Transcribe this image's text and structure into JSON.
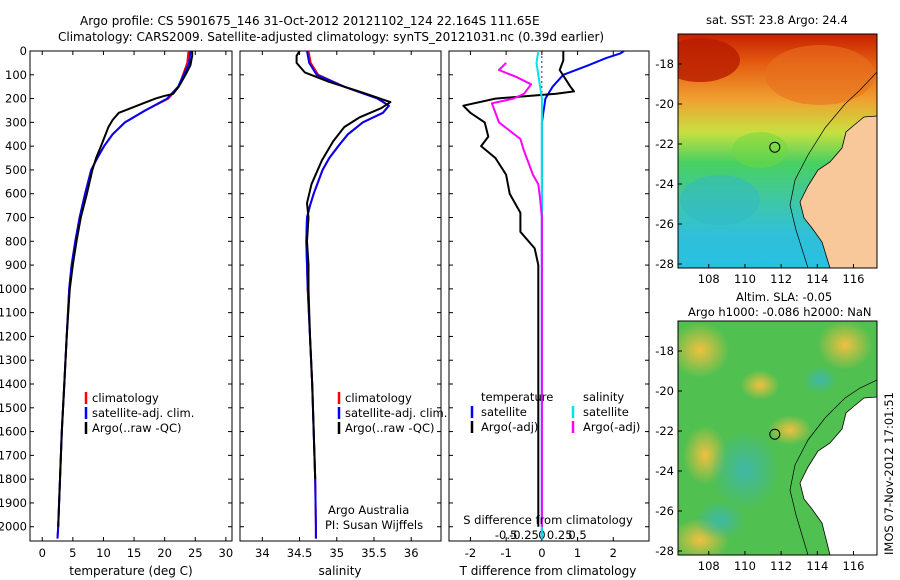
{
  "header": {
    "line1": "Argo profile: CS 5901675_146 31-Oct-2012 20121102_124 22.164S 111.65E",
    "line2": "Climatology: CARS2009. Satellite-adjusted climatology: synTS_20121031.nc (0.39d earlier)"
  },
  "colors": {
    "climatology": "#ff0000",
    "satellite": "#0000ff",
    "argo": "#000000",
    "sal_satellite": "#00e5e5",
    "sal_argo": "#ff00ff"
  },
  "chart_data": [
    {
      "type": "line",
      "id": "temperature",
      "xlabel": "temperature (deg C)",
      "ylabel": "",
      "xlim": [
        -2,
        31
      ],
      "ylim": [
        2060,
        0
      ],
      "xticks": [
        "0",
        "5",
        "10",
        "15",
        "20",
        "25",
        "30"
      ],
      "yticks": [
        "0",
        "100",
        "200",
        "300",
        "400",
        "500",
        "600",
        "700",
        "800",
        "900",
        "1000",
        "1100",
        "1200",
        "1300",
        "1400",
        "1500",
        "1600",
        "1700",
        "1800",
        "1900",
        "2000"
      ],
      "legend": [
        "climatology",
        "satellite-adj. clim.",
        "Argo(..raw -QC)"
      ],
      "series": [
        {
          "name": "climatology",
          "color": "climatology",
          "points": [
            [
              23.9,
              0
            ],
            [
              23.7,
              50
            ],
            [
              23,
              100
            ],
            [
              22.3,
              150
            ],
            [
              20.6,
              200
            ],
            [
              16.8,
              250
            ],
            [
              13.5,
              300
            ],
            [
              11.5,
              350
            ],
            [
              10.1,
              400
            ],
            [
              9,
              450
            ],
            [
              8,
              500
            ],
            [
              7,
              600
            ],
            [
              6.1,
              700
            ],
            [
              5.4,
              800
            ],
            [
              4.8,
              900
            ],
            [
              4.4,
              1000
            ],
            [
              4,
              1200
            ],
            [
              3.6,
              1400
            ],
            [
              3.2,
              1600
            ],
            [
              2.9,
              1800
            ],
            [
              2.6,
              2000
            ],
            [
              2.5,
              2050
            ]
          ]
        },
        {
          "name": "satellite-adj. clim.",
          "color": "satellite",
          "points": [
            [
              24.2,
              0
            ],
            [
              24,
              50
            ],
            [
              23.1,
              100
            ],
            [
              22.2,
              150
            ],
            [
              20.4,
              200
            ],
            [
              16.8,
              250
            ],
            [
              13.5,
              300
            ],
            [
              11.5,
              350
            ],
            [
              10.1,
              400
            ],
            [
              9,
              450
            ],
            [
              8,
              500
            ],
            [
              7,
              600
            ],
            [
              6.1,
              700
            ],
            [
              5.4,
              800
            ],
            [
              4.8,
              900
            ],
            [
              4.4,
              1000
            ],
            [
              4,
              1200
            ],
            [
              3.6,
              1400
            ],
            [
              3.2,
              1600
            ],
            [
              2.9,
              1800
            ],
            [
              2.6,
              2000
            ],
            [
              2.5,
              2050
            ]
          ]
        },
        {
          "name": "Argo(..raw -QC)",
          "color": "argo",
          "points": [
            [
              24.5,
              0
            ],
            [
              24.5,
              20
            ],
            [
              24.2,
              60
            ],
            [
              23.4,
              100
            ],
            [
              22.3,
              150
            ],
            [
              21.4,
              180
            ],
            [
              19.8,
              190
            ],
            [
              18.5,
              200
            ],
            [
              16.5,
              220
            ],
            [
              14,
              245
            ],
            [
              12.5,
              260
            ],
            [
              11.5,
              290
            ],
            [
              10.8,
              320
            ],
            [
              10.2,
              360
            ],
            [
              9.6,
              400
            ],
            [
              8.8,
              450
            ],
            [
              8.2,
              500
            ],
            [
              7.3,
              600
            ],
            [
              6.3,
              700
            ],
            [
              5.6,
              800
            ],
            [
              5,
              900
            ],
            [
              4.5,
              1000
            ],
            [
              4,
              1200
            ],
            [
              3.6,
              1400
            ],
            [
              3.2,
              1600
            ],
            [
              2.9,
              1800
            ],
            [
              2.6,
              2000
            ]
          ]
        }
      ]
    },
    {
      "type": "line",
      "id": "salinity",
      "xlabel": "salinity",
      "xlim": [
        33.7,
        36.4
      ],
      "ylim": [
        2060,
        0
      ],
      "xticks": [
        "34",
        "34.5",
        "35",
        "35.5",
        "36"
      ],
      "legend": [
        "climatology",
        "satellite-adj. clim.",
        "Argo(..raw -QC)"
      ],
      "annotation": [
        "Argo Australia",
        "PI: Susan Wijffels"
      ],
      "series": [
        {
          "name": "climatology",
          "color": "climatology",
          "points": [
            [
              34.62,
              0
            ],
            [
              34.65,
              50
            ],
            [
              34.75,
              100
            ],
            [
              35.1,
              150
            ],
            [
              35.55,
              200
            ],
            [
              35.7,
              230
            ],
            [
              35.62,
              260
            ],
            [
              35.35,
              300
            ],
            [
              35.15,
              350
            ],
            [
              35.02,
              400
            ],
            [
              34.9,
              450
            ],
            [
              34.81,
              500
            ],
            [
              34.69,
              600
            ],
            [
              34.64,
              650
            ],
            [
              34.6,
              700
            ],
            [
              34.59,
              800
            ],
            [
              34.61,
              1000
            ],
            [
              34.64,
              1200
            ],
            [
              34.67,
              1400
            ],
            [
              34.69,
              1600
            ],
            [
              34.71,
              1800
            ],
            [
              34.72,
              2000
            ],
            [
              34.72,
              2050
            ]
          ]
        },
        {
          "name": "satellite-adj. clim.",
          "color": "satellite",
          "points": [
            [
              34.6,
              0
            ],
            [
              34.63,
              50
            ],
            [
              34.73,
              100
            ],
            [
              35.1,
              150
            ],
            [
              35.55,
              200
            ],
            [
              35.7,
              230
            ],
            [
              35.62,
              260
            ],
            [
              35.35,
              300
            ],
            [
              35.15,
              350
            ],
            [
              35.02,
              400
            ],
            [
              34.9,
              450
            ],
            [
              34.81,
              500
            ],
            [
              34.69,
              600
            ],
            [
              34.64,
              650
            ],
            [
              34.6,
              700
            ],
            [
              34.59,
              800
            ],
            [
              34.61,
              1000
            ],
            [
              34.64,
              1200
            ],
            [
              34.67,
              1400
            ],
            [
              34.69,
              1600
            ],
            [
              34.71,
              1800
            ],
            [
              34.72,
              2000
            ],
            [
              34.72,
              2050
            ]
          ]
        },
        {
          "name": "Argo(..raw -QC)",
          "color": "argo",
          "points": [
            [
              34.5,
              0
            ],
            [
              34.46,
              20
            ],
            [
              34.46,
              50
            ],
            [
              34.57,
              90
            ],
            [
              34.9,
              130
            ],
            [
              35.3,
              170
            ],
            [
              35.72,
              215
            ],
            [
              35.6,
              240
            ],
            [
              35.3,
              280
            ],
            [
              35.1,
              320
            ],
            [
              34.95,
              380
            ],
            [
              34.8,
              460
            ],
            [
              34.66,
              560
            ],
            [
              34.6,
              640
            ],
            [
              34.62,
              700
            ],
            [
              34.6,
              800
            ],
            [
              34.62,
              900
            ],
            [
              34.62,
              1000
            ],
            [
              34.64,
              1200
            ],
            [
              34.67,
              1400
            ],
            [
              34.69,
              1600
            ],
            [
              34.71,
              1800
            ]
          ]
        }
      ]
    },
    {
      "type": "line",
      "id": "difference",
      "xlabel": "T difference from climatology",
      "xlabel_top": "S difference from climatology",
      "xlim": [
        -2.6,
        3
      ],
      "ylim": [
        2060,
        0
      ],
      "xticks_T": [
        "-2",
        "-1",
        "0",
        "1",
        "2"
      ],
      "xticks_S": [
        "-0.5",
        "-0.25",
        "0",
        "0.25",
        "0.5"
      ],
      "legend": [
        "temperature",
        "salinity",
        "satellite",
        "satellite",
        "Argo(-adj)",
        "Argo(-adj)"
      ],
      "series": [
        {
          "name": "temperature satellite",
          "color": "satellite",
          "points": [
            [
              2.3,
              0
            ],
            [
              2.2,
              10
            ],
            [
              1.8,
              30
            ],
            [
              1.3,
              60
            ],
            [
              0.6,
              100
            ],
            [
              0.3,
              150
            ],
            [
              0.1,
              200
            ],
            [
              0,
              300
            ],
            [
              0,
              2050
            ]
          ]
        },
        {
          "name": "temperature Argo(-adj)",
          "color": "argo",
          "points": [
            [
              0.6,
              0
            ],
            [
              0.6,
              40
            ],
            [
              0.5,
              80
            ],
            [
              0.8,
              150
            ],
            [
              0.9,
              170
            ],
            [
              0.4,
              180
            ],
            [
              -1.3,
              200
            ],
            [
              -2.2,
              230
            ],
            [
              -2,
              260
            ],
            [
              -1.6,
              300
            ],
            [
              -1.5,
              360
            ],
            [
              -1.7,
              400
            ],
            [
              -1.3,
              450
            ],
            [
              -1,
              520
            ],
            [
              -0.9,
              600
            ],
            [
              -0.6,
              680
            ],
            [
              -0.6,
              760
            ],
            [
              -0.2,
              830
            ],
            [
              -0.1,
              900
            ],
            [
              -0.1,
              2000
            ]
          ]
        },
        {
          "name": "salinity satellite",
          "color": "sal_satellite",
          "points": [
            [
              -0.1,
              0
            ],
            [
              -0.15,
              50
            ],
            [
              -0.1,
              100
            ],
            [
              -0.05,
              150
            ],
            [
              0,
              200
            ],
            [
              0,
              300
            ],
            [
              0,
              2050
            ]
          ]
        },
        {
          "name": "salinity Argo(-adj)",
          "color": "sal_argo",
          "points": [
            [
              -1,
              50
            ],
            [
              -1.2,
              80
            ],
            [
              -0.7,
              110
            ],
            [
              -0.3,
              140
            ],
            [
              -0.5,
              180
            ],
            [
              -0.8,
              200
            ],
            [
              -1.4,
              220
            ],
            [
              -1.2,
              300
            ],
            [
              -0.6,
              370
            ],
            [
              -0.5,
              420
            ],
            [
              -0.4,
              460
            ],
            [
              -0.25,
              520
            ],
            [
              -0.1,
              560
            ],
            [
              -0.05,
              620
            ],
            [
              0,
              700
            ],
            [
              0,
              2000
            ]
          ]
        }
      ]
    },
    {
      "type": "heatmap",
      "id": "sst-map",
      "title": "sat. SST: 23.8  Argo: 24.4",
      "xticks": [
        "108",
        "110",
        "112",
        "114",
        "116"
      ],
      "yticks": [
        "-18",
        "-20",
        "-22",
        "-24",
        "-26",
        "-28"
      ],
      "xlim": [
        106.3,
        117.3
      ],
      "ylim": [
        -28.2,
        -16.5
      ],
      "marker": [
        111.65,
        -22.16
      ]
    },
    {
      "type": "heatmap",
      "id": "sla-map",
      "title_line1": "Altim. SLA: -0.05",
      "title_line2": "Argo h1000: -0.086  h2000: NaN",
      "xticks": [
        "108",
        "110",
        "112",
        "114",
        "116"
      ],
      "yticks": [
        "-18",
        "-20",
        "-22",
        "-24",
        "-26",
        "-28"
      ],
      "xlim": [
        106.3,
        117.3
      ],
      "ylim": [
        -28.2,
        -16.5
      ],
      "marker": [
        111.65,
        -22.16
      ]
    }
  ],
  "stamp": "IMOS 07-Nov-2012 17:01:51"
}
